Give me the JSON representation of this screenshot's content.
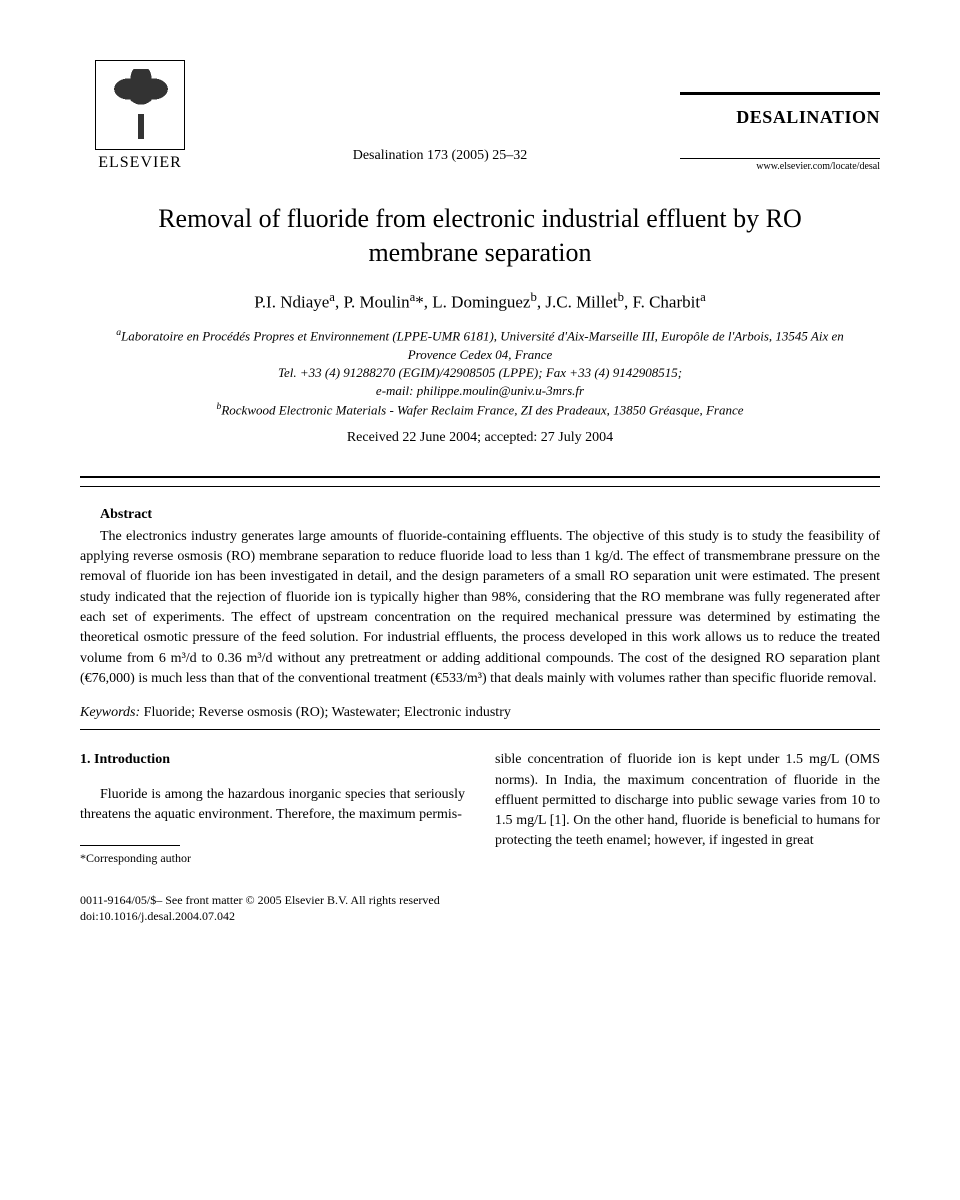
{
  "header": {
    "publisher": "ELSEVIER",
    "citation": "Desalination 173 (2005) 25–32",
    "journal": "DESALINATION",
    "url": "www.elsevier.com/locate/desal"
  },
  "title": "Removal of fluoride from electronic industrial effluent by RO membrane separation",
  "authors_html": "P.I. Ndiaye<sup>a</sup>, P. Moulin<sup>a</sup>*, L. Dominguez<sup>b</sup>, J.C. Millet<sup>b</sup>, F. Charbit<sup>a</sup>",
  "affiliations": {
    "a": "Laboratoire en Procédés Propres et Environnement (LPPE-UMR 6181), Université d'Aix-Marseille III, Europôle de l'Arbois, 13545 Aix en Provence Cedex 04, France",
    "contact": "Tel. +33 (4) 91288270 (EGIM)/42908505 (LPPE); Fax +33 (4) 9142908515;",
    "email": "e-mail: philippe.moulin@univ.u-3mrs.fr",
    "b": "Rockwood Electronic Materials - Wafer Reclaim France, ZI des Pradeaux, 13850 Gréasque, France"
  },
  "dates": "Received 22 June 2004; accepted: 27 July 2004",
  "abstract": {
    "heading": "Abstract",
    "body": "The electronics industry generates large amounts of fluoride-containing effluents. The objective of this study is to study the feasibility of applying reverse osmosis (RO) membrane separation to reduce fluoride load to less than 1 kg/d. The effect of transmembrane pressure on the removal of fluoride ion has been investigated in detail, and the design parameters of a small RO separation unit were estimated. The present study indicated that the rejection of fluoride ion is typically higher than 98%, considering that the RO membrane was fully regenerated after each set of experiments. The effect of upstream concentration on the required mechanical pressure was determined by estimating the theoretical osmotic pressure of the feed solution. For industrial effluents, the process developed in this work allows us to reduce the treated volume from 6 m³/d to 0.36 m³/d without any pretreatment or adding additional compounds. The cost of the designed RO separation plant (€76,000) is much less than that of the conventional treatment (€533/m³) that deals mainly with volumes rather than specific fluoride removal."
  },
  "keywords": {
    "label": "Keywords:",
    "text": " Fluoride; Reverse osmosis (RO); Wastewater; Electronic industry"
  },
  "section1": {
    "heading": "1. Introduction",
    "col1": "Fluoride is among the hazardous inorganic species that seriously threatens the aquatic environment. Therefore, the maximum permis-",
    "col2": "sible concentration of fluoride ion is kept under 1.5 mg/L (OMS norms). In India, the maximum concentration of fluoride in the effluent permitted to discharge into public sewage varies from 10 to 1.5 mg/L [1]. On the other hand, fluoride is beneficial to humans for protecting the teeth enamel; however, if ingested in great"
  },
  "footnote": "*Corresponding author",
  "footer": {
    "line1": "0011-9164/05/$– See front matter © 2005 Elsevier B.V. All rights reserved",
    "line2": "doi:10.1016/j.desal.2004.07.042"
  }
}
